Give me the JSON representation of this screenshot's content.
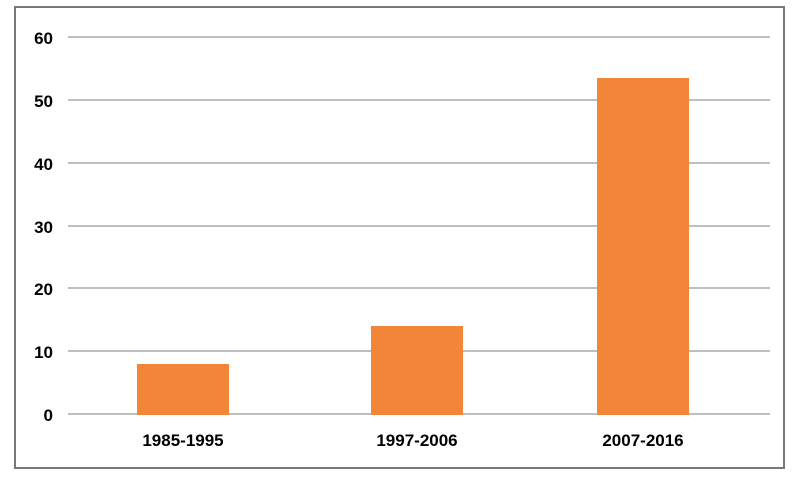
{
  "chart_data": {
    "type": "bar",
    "categories": [
      "1985-1995",
      "1997-2006",
      "2007-2016"
    ],
    "values": [
      8,
      14,
      53.5
    ],
    "title": "",
    "xlabel": "",
    "ylabel": "",
    "ylim": [
      0,
      60
    ],
    "yticks": [
      0,
      10,
      20,
      30,
      40,
      50,
      60
    ],
    "grid": true,
    "legend": false,
    "bar_color": "#F28638",
    "gridline_color": "#BFBFBF",
    "frame_color": "#787878",
    "label_color": "#000000",
    "background_color": "#FFFFFF"
  }
}
